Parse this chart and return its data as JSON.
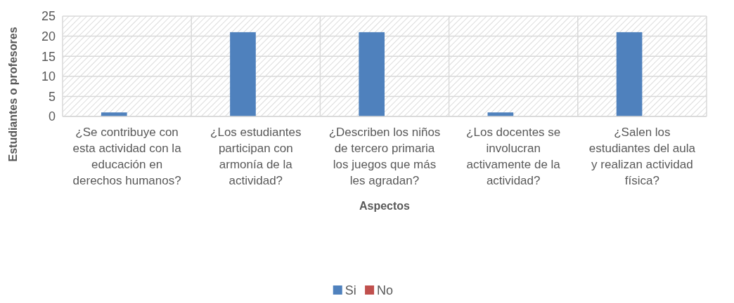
{
  "chart_data": {
    "type": "bar",
    "xlabel": "Aspectos",
    "ylabel": "Estudiantes o profesores",
    "categories": [
      "¿Se contribuye con esta actividad con la educación en derechos humanos?",
      "¿Los estudiantes participan con armonía de la actividad?",
      "¿Describen los niños de tercero primaria los juegos que más les agradan?",
      "¿Los docentes se involucran activamente de la actividad?",
      "¿Salen los estudiantes del aula y realizan actividad física?"
    ],
    "series": [
      {
        "name": "Si",
        "color": "#4f81bd",
        "values": [
          1,
          21,
          21,
          1,
          21
        ]
      },
      {
        "name": "No",
        "color": "#c0504d",
        "values": [
          0,
          0,
          0,
          0,
          0
        ]
      }
    ],
    "ylim": [
      0,
      25
    ],
    "yticks": [
      0,
      5,
      10,
      15,
      20,
      25
    ],
    "grid": true,
    "legend": "bottom"
  }
}
